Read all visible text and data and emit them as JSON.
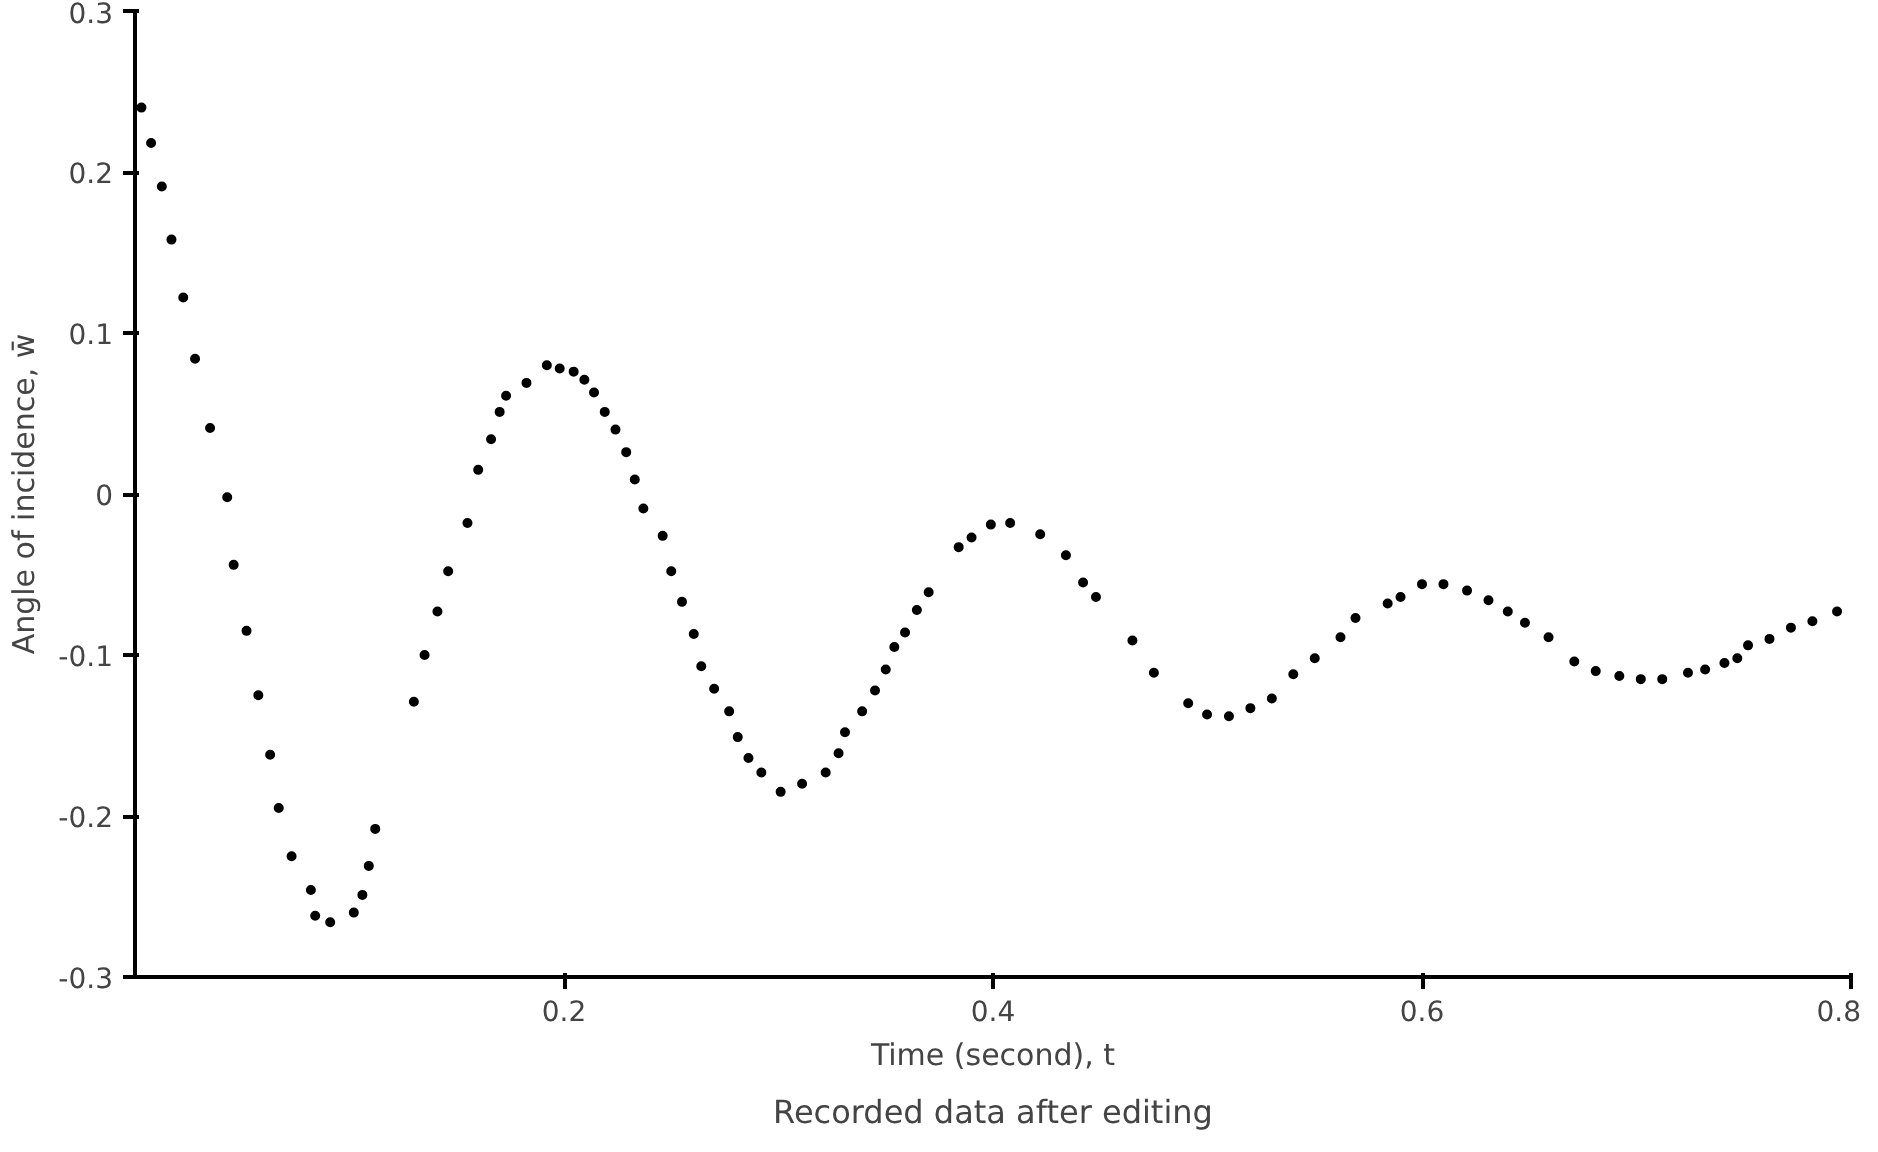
{
  "chart_data": {
    "type": "scatter",
    "title": "Recorded data after editing",
    "xlabel": "Time (second), t",
    "ylabel": "Angle of incidence, w̄",
    "xlim": [
      0,
      0.8
    ],
    "ylim": [
      -0.3,
      0.3
    ],
    "xticks": [
      0.2,
      0.4,
      0.6,
      0.8
    ],
    "yticks": [
      -0.3,
      -0.2,
      -0.1,
      0,
      0.1,
      0.2,
      0.3
    ],
    "grid": false,
    "marker": "circle",
    "series": [
      {
        "color": "#000000",
        "x": [
          0.003,
          0.0075,
          0.0125,
          0.017,
          0.0225,
          0.028,
          0.035,
          0.043,
          0.046,
          0.052,
          0.0575,
          0.063,
          0.067,
          0.073,
          0.082,
          0.084,
          0.091,
          0.102,
          0.106,
          0.109,
          0.112,
          0.13,
          0.135,
          0.141,
          0.146,
          0.155,
          0.16,
          0.166,
          0.17,
          0.173,
          0.1825,
          0.192,
          0.198,
          0.2045,
          0.2095,
          0.214,
          0.219,
          0.224,
          0.229,
          0.233,
          0.237,
          0.246,
          0.25,
          0.255,
          0.2605,
          0.264,
          0.27,
          0.277,
          0.281,
          0.286,
          0.292,
          0.301,
          0.311,
          0.322,
          0.328,
          0.331,
          0.339,
          0.345,
          0.35,
          0.354,
          0.359,
          0.3645,
          0.37,
          0.384,
          0.39,
          0.399,
          0.408,
          0.422,
          0.434,
          0.442,
          0.448,
          0.465,
          0.475,
          0.491,
          0.4998,
          0.51,
          0.52,
          0.53,
          0.54,
          0.55,
          0.562,
          0.569,
          0.584,
          0.59,
          0.6,
          0.61,
          0.621,
          0.631,
          0.64,
          0.648,
          0.659,
          0.671,
          0.681,
          0.692,
          0.702,
          0.712,
          0.724,
          0.732,
          0.741,
          0.747,
          0.752,
          0.762,
          0.772,
          0.782,
          0.7935
        ],
        "values": [
          0.24,
          0.218,
          0.191,
          0.158,
          0.122,
          0.084,
          0.041,
          -0.002,
          -0.044,
          -0.085,
          -0.125,
          -0.162,
          -0.195,
          -0.225,
          -0.246,
          -0.262,
          -0.266,
          -0.26,
          -0.249,
          -0.231,
          -0.208,
          -0.129,
          -0.1,
          -0.073,
          -0.048,
          -0.018,
          0.015,
          0.034,
          0.051,
          0.061,
          0.069,
          0.08,
          0.078,
          0.076,
          0.071,
          0.063,
          0.051,
          0.04,
          0.026,
          0.009,
          -0.009,
          -0.026,
          -0.048,
          -0.067,
          -0.087,
          -0.107,
          -0.121,
          -0.135,
          -0.151,
          -0.164,
          -0.173,
          -0.185,
          -0.18,
          -0.173,
          -0.161,
          -0.148,
          -0.135,
          -0.122,
          -0.109,
          -0.095,
          -0.086,
          -0.072,
          -0.061,
          -0.033,
          -0.027,
          -0.019,
          -0.018,
          -0.025,
          -0.038,
          -0.055,
          -0.064,
          -0.091,
          -0.111,
          -0.13,
          -0.137,
          -0.138,
          -0.133,
          -0.127,
          -0.112,
          -0.102,
          -0.089,
          -0.077,
          -0.068,
          -0.064,
          -0.056,
          -0.056,
          -0.06,
          -0.066,
          -0.073,
          -0.08,
          -0.089,
          -0.104,
          -0.11,
          -0.113,
          -0.115,
          -0.115,
          -0.111,
          -0.109,
          -0.105,
          -0.102,
          -0.094,
          -0.09,
          -0.083,
          -0.079,
          -0.073
        ]
      }
    ]
  }
}
